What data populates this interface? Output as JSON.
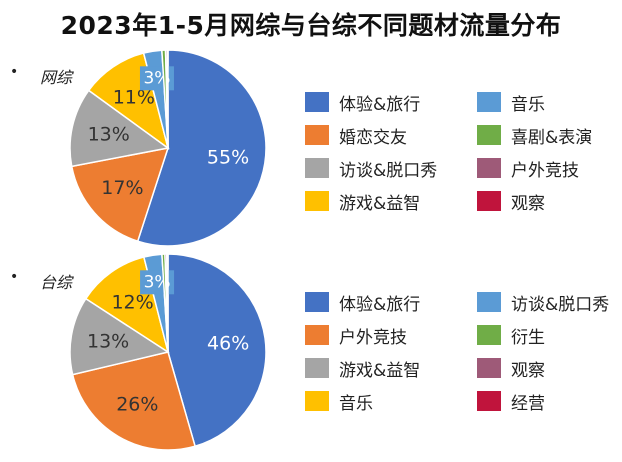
{
  "title": "2023年1-5月网综与台综不同题材流量分布",
  "bullet_symbol": "•",
  "chart_data": [
    {
      "type": "pie",
      "label": "网综",
      "slices": [
        {
          "name": "体验&旅行",
          "value": 55,
          "label": "55%",
          "color": "#4472C4"
        },
        {
          "name": "婚恋交友",
          "value": 17,
          "label": "17%",
          "color": "#ED7D31"
        },
        {
          "name": "访谈&脱口秀",
          "value": 13,
          "label": "13%",
          "color": "#A5A5A5"
        },
        {
          "name": "游戏&益智",
          "value": 11,
          "label": "11%",
          "color": "#FFC000"
        },
        {
          "name": "音乐",
          "value": 3,
          "label": "3%",
          "color": "#5B9BD5"
        },
        {
          "name": "喜剧&表演",
          "value": 0.6,
          "label": "",
          "color": "#70AD47"
        },
        {
          "name": "户外竞技",
          "value": 0.3,
          "label": "",
          "color": "#9E5A78"
        },
        {
          "name": "观察",
          "value": 0.1,
          "label": "",
          "color": "#C0143C"
        }
      ]
    },
    {
      "type": "pie",
      "label": "台综",
      "slices": [
        {
          "name": "体验&旅行",
          "value": 46,
          "label": "46%",
          "color": "#4472C4"
        },
        {
          "name": "户外竞技",
          "value": 26,
          "label": "26%",
          "color": "#ED7D31"
        },
        {
          "name": "游戏&益智",
          "value": 13,
          "label": "13%",
          "color": "#A5A5A5"
        },
        {
          "name": "音乐",
          "value": 12,
          "label": "12%",
          "color": "#FFC000"
        },
        {
          "name": "访谈&脱口秀",
          "value": 3,
          "label": "3%",
          "color": "#5B9BD5"
        },
        {
          "name": "衍生",
          "value": 0.5,
          "label": "",
          "color": "#70AD47"
        },
        {
          "name": "观察",
          "value": 0.3,
          "label": "",
          "color": "#9E5A78"
        },
        {
          "name": "经营",
          "value": 0.2,
          "label": "",
          "color": "#C0143C"
        }
      ]
    }
  ]
}
